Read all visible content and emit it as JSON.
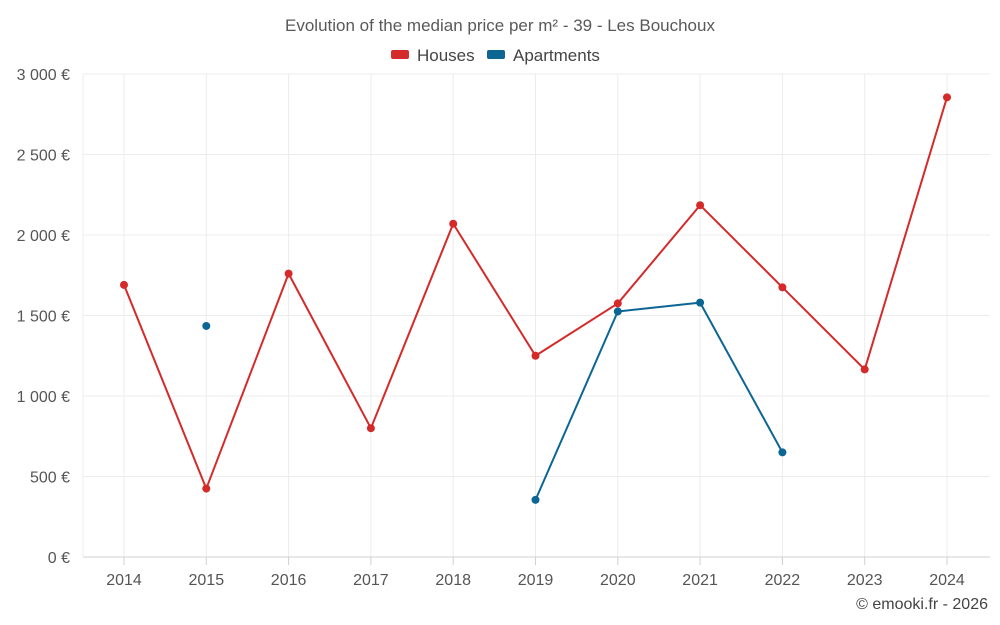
{
  "chart_data": {
    "type": "line",
    "title": "Evolution of the median price per m² - 39 - Les Bouchoux",
    "categories": [
      "2014",
      "2015",
      "2016",
      "2017",
      "2018",
      "2019",
      "2020",
      "2021",
      "2022",
      "2023",
      "2024"
    ],
    "series": [
      {
        "name": "Houses",
        "color": "#d42a2a",
        "values": [
          1690,
          425,
          1760,
          800,
          2070,
          1250,
          1575,
          2185,
          1675,
          1165,
          2855
        ]
      },
      {
        "name": "Apartments",
        "color": "#0b6694",
        "values": [
          null,
          1435,
          null,
          null,
          null,
          355,
          1525,
          1580,
          650,
          null,
          null
        ]
      }
    ],
    "y_ticks": [
      0,
      500,
      1000,
      1500,
      2000,
      2500,
      3000
    ],
    "y_tick_labels": [
      "0 €",
      "500 €",
      "1 000 €",
      "1 500 €",
      "2 000 €",
      "2 500 €",
      "3 000 €"
    ],
    "ylim": [
      0,
      3000
    ],
    "xlabel": "",
    "ylabel": "",
    "grid": true,
    "legend_position": "top-center"
  },
  "credit": "© emooki.fr - 2026"
}
